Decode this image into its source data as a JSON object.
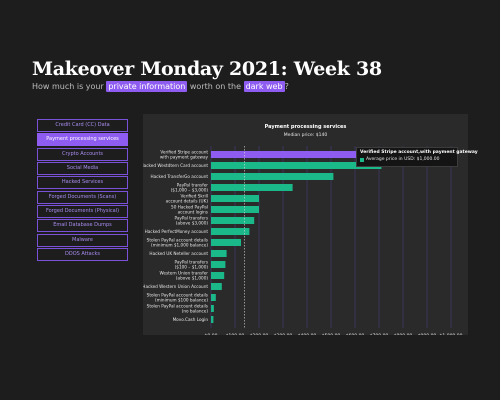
{
  "header": {
    "title": "Makeover Monday 2021: Week 38",
    "subtitle_pre": "How much is your",
    "subtitle_hl1": "private information",
    "subtitle_mid": "worth on the",
    "subtitle_hl2": "dark web",
    "subtitle_post": "?"
  },
  "nav": {
    "items": [
      {
        "label": "Credit Card (CC) Data",
        "active": false
      },
      {
        "label": "Payment processing services",
        "active": true
      },
      {
        "label": "Crypto Accounts",
        "active": false
      },
      {
        "label": "Social Media",
        "active": false
      },
      {
        "label": "Hacked Services",
        "active": false
      },
      {
        "label": "Forged Documents (Scans)",
        "active": false
      },
      {
        "label": "Forged Documents (Physical)",
        "active": false
      },
      {
        "label": "Email Database Dumps",
        "active": false
      },
      {
        "label": "Malware",
        "active": false
      },
      {
        "label": "DDOS Attacks",
        "active": false
      }
    ]
  },
  "chart_data": {
    "type": "bar",
    "orientation": "horizontal",
    "title": "Payment processing services",
    "subtitle": "Median price: $140",
    "median": 140,
    "xlim": [
      0,
      1000
    ],
    "xticks": [
      "$0.00",
      "$100.00",
      "$200.00",
      "$300.00",
      "$400.00",
      "$500.00",
      "$600.00",
      "$700.00",
      "$800.00",
      "$900.00",
      "$1,000.00"
    ],
    "grid": true,
    "categories": [
      [
        "Verified Stripe account",
        "with payment gateway"
      ],
      [
        "Hacked Westdtern Card account"
      ],
      [
        "Hacked TransferGo account"
      ],
      [
        "PayPal transfer",
        "($1,000 – $3,000)"
      ],
      [
        "Verified Skrill",
        "account details (UK)"
      ],
      [
        "50 Hacked PayPal",
        "account logins"
      ],
      [
        "PayPal transfers",
        "(above $3,000)"
      ],
      [
        "Hacked PerfectMoney account"
      ],
      [
        "Stolen PayPal account details",
        "(minimum $1,000 balance)"
      ],
      [
        "Hacked UK Neteller account"
      ],
      [
        "PayPal transfers",
        "($100 – $1,000)"
      ],
      [
        "Western Union transfer",
        "(above $1,000)"
      ],
      [
        "Hacked Western Union Account"
      ],
      [
        "Stolen PayPal account details",
        "(minimum $100 balance)"
      ],
      [
        "Stolen PayPal account details",
        "(no balance)"
      ],
      [
        "Movo.Cash Login"
      ]
    ],
    "values": [
      1000,
      710,
      510,
      340,
      200,
      200,
      180,
      160,
      125,
      65,
      60,
      55,
      45,
      20,
      12,
      10
    ],
    "bar_color": "#1bb88a",
    "highlight_color": "#8e5cf0",
    "tooltip": {
      "title": "Verified Stripe account,with payment gateway",
      "label": "Average price in USD: $1,000.00"
    }
  }
}
